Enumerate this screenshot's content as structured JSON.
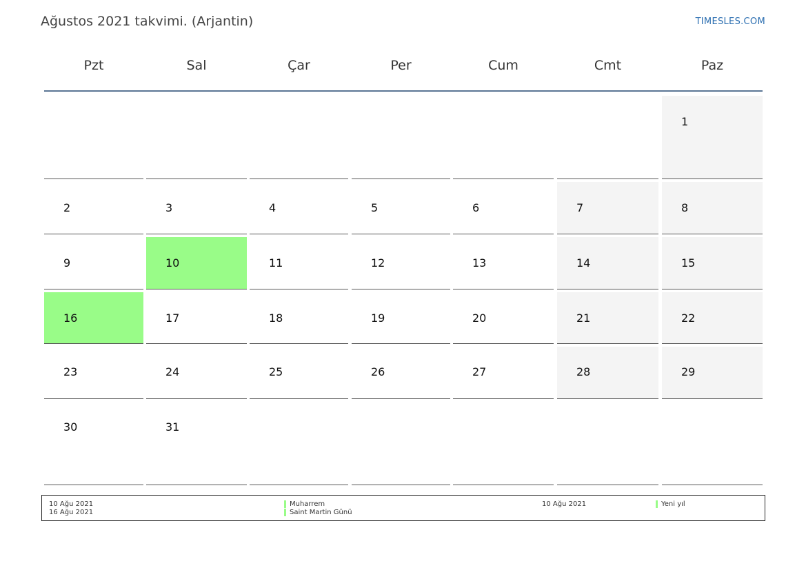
{
  "title": "Ağustos 2021 takvimi. (Arjantin)",
  "brand": "TIMESLES.COM",
  "weekdays": [
    "Pzt",
    "Sal",
    "Çar",
    "Per",
    "Cum",
    "Cmt",
    "Paz"
  ],
  "days": [
    "1",
    "2",
    "3",
    "4",
    "5",
    "6",
    "7",
    "8",
    "9",
    "10",
    "11",
    "12",
    "13",
    "14",
    "15",
    "16",
    "17",
    "18",
    "19",
    "20",
    "21",
    "22",
    "23",
    "24",
    "25",
    "26",
    "27",
    "28",
    "29",
    "30",
    "31"
  ],
  "highlight_color": "#99fc88",
  "legend": {
    "left_dates": [
      "10 Ağu 2021",
      "16 Ağu 2021"
    ],
    "left_names": [
      "Muharrem",
      "Saint Martin Günü"
    ],
    "right_dates": [
      "10 Ağu 2021"
    ],
    "right_names": [
      "Yeni yıl"
    ]
  }
}
